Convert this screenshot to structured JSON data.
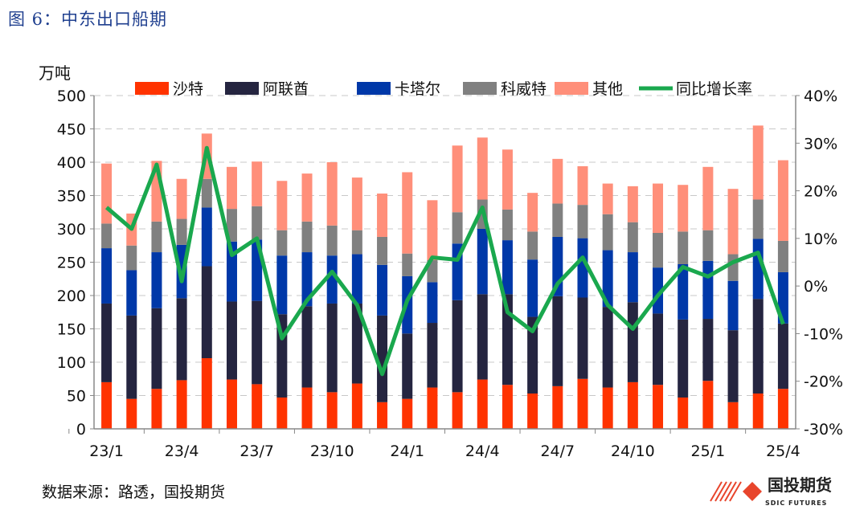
{
  "title": "图 6：中东出口船期",
  "source": "数据来源：路透，国投期货",
  "logo": {
    "cn": "国投期货",
    "en": "SDIC FUTURES"
  },
  "chart_data": {
    "type": "bar",
    "stacked": true,
    "ylabel": "万吨",
    "ylim": [
      0,
      500
    ],
    "y2lim": [
      -30,
      40
    ],
    "yticks": [
      0,
      50,
      100,
      150,
      200,
      250,
      300,
      350,
      400,
      450,
      500
    ],
    "y2ticks": [
      "-30%",
      "-20%",
      "-10%",
      "0%",
      "10%",
      "20%",
      "30%",
      "40%"
    ],
    "grid": true,
    "legend": "top",
    "categories": [
      "23/1",
      "23/2",
      "23/3",
      "23/4",
      "23/5",
      "23/6",
      "23/7",
      "23/8",
      "23/9",
      "23/10",
      "23/11",
      "23/12",
      "24/1",
      "24/2",
      "24/3",
      "24/4",
      "24/5",
      "24/6",
      "24/7",
      "24/8",
      "24/9",
      "24/10",
      "24/11",
      "24/12",
      "25/1",
      "25/2",
      "25/3",
      "25/4"
    ],
    "xticklabels": [
      "23/1",
      "23/4",
      "23/7",
      "23/10",
      "24/1",
      "24/4",
      "24/7",
      "24/10",
      "25/1",
      "25/4"
    ],
    "series": [
      {
        "name": "沙特",
        "color": "#ff3300",
        "values": [
          70,
          45,
          60,
          73,
          106,
          74,
          67,
          47,
          62,
          55,
          68,
          40,
          45,
          62,
          55,
          74,
          66,
          53,
          64,
          75,
          62,
          70,
          66,
          47,
          72,
          40,
          53,
          60
        ]
      },
      {
        "name": "阿联酋",
        "color": "#252540",
        "values": [
          118,
          125,
          121,
          123,
          138,
          117,
          125,
          125,
          122,
          133,
          120,
          130,
          98,
          97,
          138,
          128,
          136,
          115,
          135,
          122,
          121,
          120,
          107,
          117,
          93,
          108,
          142,
          98
        ]
      },
      {
        "name": "卡塔尔",
        "color": "#0038a8",
        "values": [
          83,
          68,
          84,
          80,
          88,
          90,
          92,
          88,
          81,
          72,
          74,
          76,
          86,
          61,
          85,
          98,
          81,
          86,
          89,
          89,
          85,
          75,
          69,
          83,
          87,
          74,
          90,
          77
        ]
      },
      {
        "name": "科威特",
        "color": "#808080",
        "values": [
          37,
          37,
          46,
          39,
          43,
          49,
          50,
          38,
          46,
          45,
          36,
          42,
          34,
          33,
          47,
          44,
          46,
          42,
          50,
          50,
          54,
          45,
          52,
          49,
          46,
          40,
          59,
          47
        ]
      },
      {
        "name": "其他",
        "color": "#ff8f7a",
        "values": [
          90,
          48,
          91,
          60,
          68,
          63,
          67,
          74,
          72,
          95,
          79,
          65,
          122,
          90,
          100,
          93,
          90,
          58,
          67,
          58,
          46,
          54,
          74,
          70,
          95,
          98,
          111,
          121
        ]
      },
      {
        "name": "同比增长率",
        "color": "#1aa84e",
        "type": "line",
        "axis": "right",
        "values": [
          16.5,
          12,
          25.5,
          1,
          29,
          6.5,
          10,
          -11,
          -3,
          3,
          -4,
          -18.5,
          -3,
          6,
          5.5,
          16.5,
          -5.5,
          -9.5,
          0.5,
          6,
          -4,
          -9,
          -2,
          4,
          2,
          5,
          7,
          -8
        ]
      }
    ]
  }
}
